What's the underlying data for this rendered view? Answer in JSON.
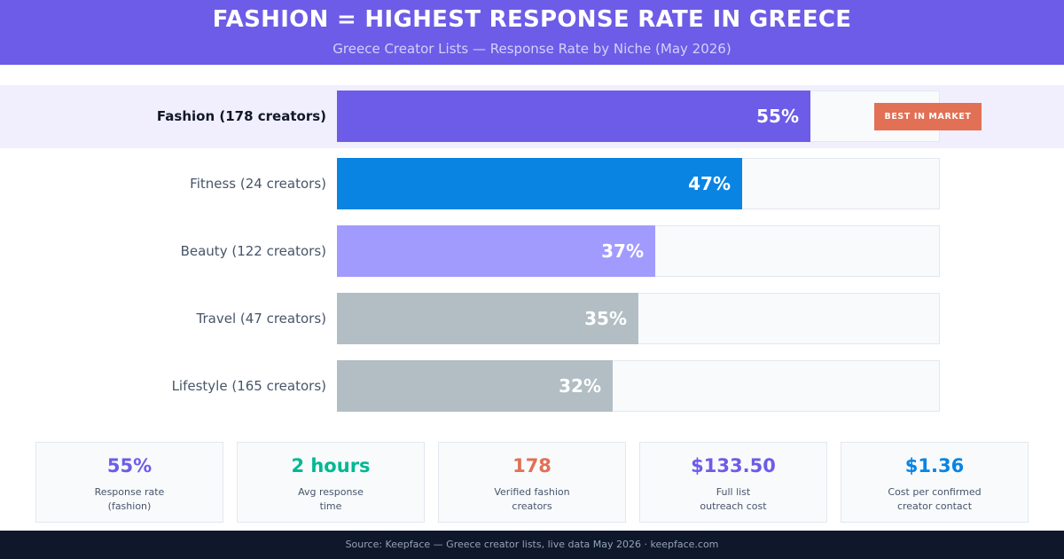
{
  "header": {
    "title": "FASHION = HIGHEST RESPONSE RATE IN GREECE",
    "subtitle": "Greece Creator Lists — Response Rate by Niche (May 2026)"
  },
  "chart_data": {
    "type": "bar",
    "orientation": "horizontal",
    "title": "FASHION = HIGHEST RESPONSE RATE IN GREECE",
    "subtitle": "Greece Creator Lists — Response Rate by Niche (May 2026)",
    "xlim": [
      0,
      70
    ],
    "grid": false,
    "categories": [
      "Fashion (178 creators)",
      "Fitness (24 creators)",
      "Beauty (122 creators)",
      "Travel (47 creators)",
      "Lifestyle (165 creators)"
    ],
    "values": [
      55,
      47,
      37,
      35,
      32
    ],
    "value_labels": [
      "55%",
      "47%",
      "37%",
      "35%",
      "32%"
    ],
    "colors": [
      "#6c5ce7",
      "#0984e3",
      "#a29bfe",
      "#b2bec3",
      "#b2bec3"
    ],
    "annotations": [
      {
        "category": "Fashion (178 creators)",
        "text": "BEST IN MARKET"
      }
    ]
  },
  "stats": [
    {
      "value": "55%",
      "line1": "Response rate",
      "line2": "(fashion)",
      "color": "#6c5ce7"
    },
    {
      "value": "2 hours",
      "line1": "Avg response",
      "line2": "time",
      "color": "#00b894"
    },
    {
      "value": "178",
      "line1": "Verified fashion",
      "line2": "creators",
      "color": "#e17055"
    },
    {
      "value": "$133.50",
      "line1": "Full list",
      "line2": "outreach cost",
      "color": "#6c5ce7"
    },
    {
      "value": "$1.36",
      "line1": "Cost per confirmed",
      "line2": "creator contact",
      "color": "#0984e3"
    }
  ],
  "footer": {
    "text": "Source: Keepface — Greece creator lists, live data May 2026  ·  keepface.com"
  }
}
